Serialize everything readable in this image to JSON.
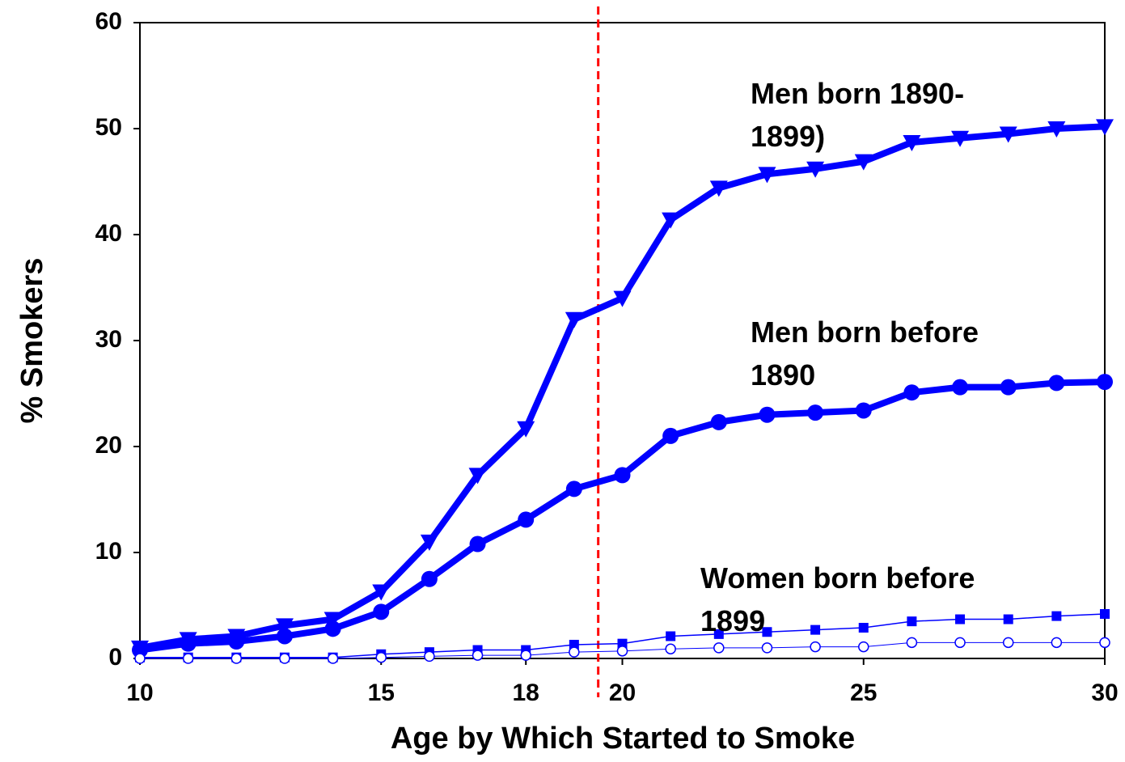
{
  "chart_data": {
    "type": "line",
    "xlabel": "Age by Which Started to Smoke",
    "ylabel": "% Smokers",
    "x": [
      10,
      11,
      12,
      13,
      14,
      15,
      16,
      17,
      18,
      19,
      20,
      21,
      22,
      23,
      24,
      25,
      26,
      27,
      28,
      29,
      30
    ],
    "series": [
      {
        "name": "Men born 1890- 1899)",
        "color": "#0000ff",
        "marker": "triangle-down",
        "values": [
          1,
          1.8,
          2.1,
          3.1,
          3.7,
          6.3,
          11.0,
          17.3,
          21.7,
          32.0,
          34.0,
          41.4,
          44.4,
          45.7,
          46.2,
          46.9,
          48.7,
          49.1,
          49.5,
          50.0,
          50.2
        ]
      },
      {
        "name": "Men born before 1890",
        "color": "#0000ff",
        "marker": "circle",
        "values": [
          0.8,
          1.4,
          1.6,
          2.1,
          2.8,
          4.4,
          7.5,
          10.8,
          13.1,
          16.0,
          17.3,
          21.0,
          22.3,
          23.0,
          23.2,
          23.4,
          25.1,
          25.6,
          25.6,
          26.0,
          26.1
        ]
      },
      {
        "name": "Women born before 1899",
        "color": "#0000ff",
        "marker": "square",
        "values": [
          0.1,
          0.1,
          0.1,
          0.1,
          0.1,
          0.4,
          0.6,
          0.8,
          0.8,
          1.3,
          1.4,
          2.1,
          2.3,
          2.5,
          2.7,
          2.9,
          3.5,
          3.7,
          3.7,
          4.0,
          4.2
        ]
      },
      {
        "color": "#0000ff",
        "marker": "open-circle",
        "values": [
          0,
          0,
          0,
          0,
          0,
          0.1,
          0.2,
          0.3,
          0.3,
          0.6,
          0.7,
          0.9,
          1.0,
          1.0,
          1.1,
          1.1,
          1.5,
          1.5,
          1.5,
          1.5,
          1.5
        ]
      }
    ],
    "reference_line": {
      "x": 19.5,
      "color": "#ff0000",
      "style": "dashed"
    },
    "xlim": [
      10,
      30
    ],
    "xticks": [
      10,
      15,
      18,
      20,
      25,
      30
    ],
    "ylim": [
      0,
      60
    ],
    "yticks": [
      0,
      10,
      20,
      30,
      40,
      50,
      60
    ],
    "grid": false
  }
}
